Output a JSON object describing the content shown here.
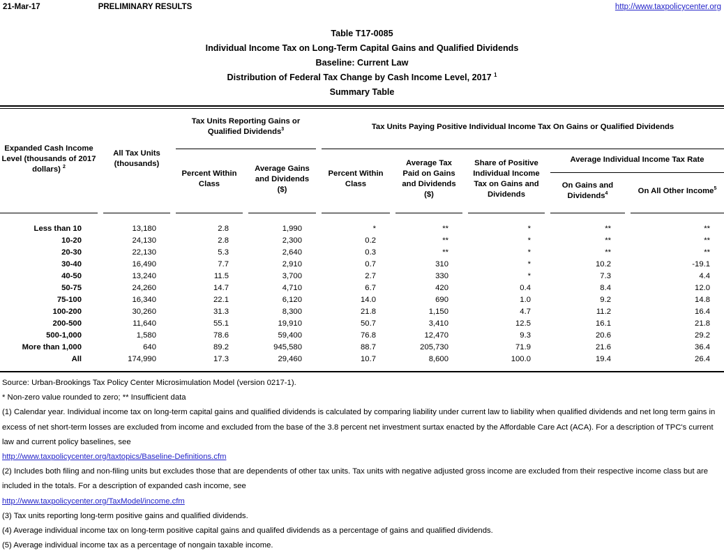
{
  "colors": {
    "background": "#ffffff",
    "text": "#000000",
    "link": "#2323c8"
  },
  "topbar": {
    "date": "21-Mar-17",
    "status": "PRELIMINARY RESULTS",
    "site_link": "http://www.taxpolicycenter.org"
  },
  "title": {
    "line1": "Table T17-0085",
    "line2": "Individual Income Tax on Long-Term Capital Gains and Qualified Dividends",
    "line3": "Baseline: Current Law",
    "line4": "Distribution of Federal Tax Change by Cash Income Level, 2017",
    "line4_sup": "1",
    "line5": "Summary Table"
  },
  "table": {
    "header": {
      "col1": "Expanded Cash Income Level (thousands of 2017 dollars)",
      "col1_sup": "2",
      "col2": "All Tax Units (thousands)",
      "group1": "Tax Units Reporting Gains or Qualified Dividends",
      "group1_sup": "3",
      "group2": "Tax Units Paying Positive Individual Income Tax On Gains or Qualified Dividends",
      "g1c1": "Percent Within Class",
      "g1c2": "Average Gains and Dividends ($)",
      "g2c1": "Percent Within Class",
      "g2c2": "Average Tax Paid on Gains and Dividends ($)",
      "g2c3": "Share of Positive Individual Income Tax on Gains and Dividends",
      "rate_group": "Average Individual Income Tax Rate",
      "rate1": "On Gains and Dividends",
      "rate1_sup": "4",
      "rate2": "On All Other Income",
      "rate2_sup": "5"
    },
    "rows": [
      {
        "label": "Less than 10",
        "values": [
          "13,180",
          "2.8",
          "1,990",
          "*",
          "**",
          "*",
          "**",
          "**"
        ]
      },
      {
        "label": "10-20",
        "values": [
          "24,130",
          "2.8",
          "2,300",
          "0.2",
          "**",
          "*",
          "**",
          "**"
        ]
      },
      {
        "label": "20-30",
        "values": [
          "22,130",
          "5.3",
          "2,640",
          "0.3",
          "**",
          "*",
          "**",
          "**"
        ]
      },
      {
        "label": "30-40",
        "values": [
          "16,490",
          "7.7",
          "2,910",
          "0.7",
          "310",
          "*",
          "10.2",
          "-19.1"
        ]
      },
      {
        "label": "40-50",
        "values": [
          "13,240",
          "11.5",
          "3,700",
          "2.7",
          "330",
          "*",
          "7.3",
          "4.4"
        ]
      },
      {
        "label": "50-75",
        "values": [
          "24,260",
          "14.7",
          "4,710",
          "6.7",
          "420",
          "0.4",
          "8.4",
          "12.0"
        ]
      },
      {
        "label": "75-100",
        "values": [
          "16,340",
          "22.1",
          "6,120",
          "14.0",
          "690",
          "1.0",
          "9.2",
          "14.8"
        ]
      },
      {
        "label": "100-200",
        "values": [
          "30,260",
          "31.3",
          "8,300",
          "21.8",
          "1,150",
          "4.7",
          "11.2",
          "16.4"
        ]
      },
      {
        "label": "200-500",
        "values": [
          "11,640",
          "55.1",
          "19,910",
          "50.7",
          "3,410",
          "12.5",
          "16.1",
          "21.8"
        ]
      },
      {
        "label": "500-1,000",
        "values": [
          "1,580",
          "78.6",
          "59,400",
          "76.8",
          "12,470",
          "9.3",
          "20.6",
          "29.2"
        ]
      },
      {
        "label": "More than 1,000",
        "values": [
          "640",
          "89.2",
          "945,580",
          "88.7",
          "205,730",
          "71.9",
          "21.6",
          "36.4"
        ]
      },
      {
        "label": "All",
        "values": [
          "174,990",
          "17.3",
          "29,460",
          "10.7",
          "8,600",
          "100.0",
          "19.4",
          "26.4"
        ]
      }
    ]
  },
  "footnotes": {
    "source": "Source: Urban-Brookings Tax Policy Center Microsimulation Model (version 0217-1).",
    "legend": "* Non-zero value rounded to zero; ** Insufficient data",
    "note1": "(1) Calendar year. Individual income tax on long-term capital gains and qualified dividends is calculated by comparing liability under current law to liability when qualified dividends and net long term gains in excess of net short-term losses are excluded from income and excluded from the base of the 3.8 percent net investment surtax enacted by the Affordable Care Act (ACA). For a description of TPC's current law and current policy baselines, see",
    "link1": "http://www.taxpolicycenter.org/taxtopics/Baseline-Definitions.cfm",
    "note2": "(2) Includes both filing and non-filing units but excludes those that are dependents of other tax units. Tax units with negative adjusted gross income are excluded from their respective income class but are included in the totals. For a description of expanded cash income, see",
    "link2": "http://www.taxpolicycenter.org/TaxModel/income.cfm",
    "note3": "(3) Tax units reporting long-term positive gains and qualified dividends.",
    "note4": "(4) Average individual income tax on long-term positive capital gains and qualifed dividends as a percentage of gains and qualified dividends.",
    "note5": "(5) Average individual income tax as a percentage of nongain taxable income."
  }
}
